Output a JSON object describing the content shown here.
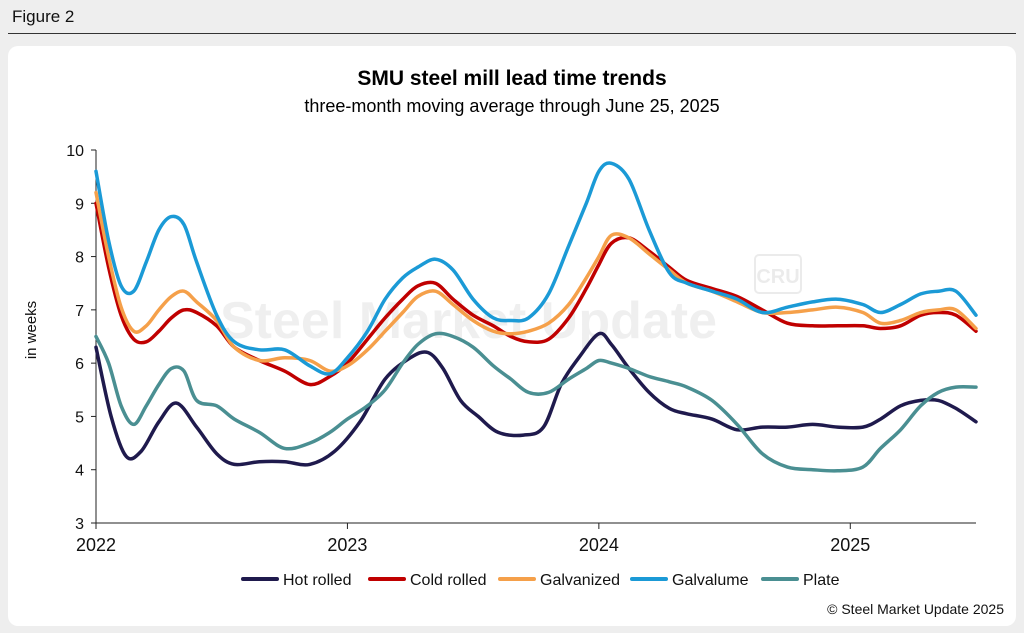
{
  "figure_label": "Figure 2",
  "credit": "© Steel Market Update 2025",
  "watermark": {
    "text": "Steel Market Update",
    "badge": "CRU"
  },
  "chart_data": {
    "type": "line",
    "title": "SMU steel mill lead time trends",
    "subtitle": "three-month moving average through June 25, 2025",
    "ylabel": "in weeks",
    "xlabel": "",
    "ylim": [
      3,
      10
    ],
    "xlim": [
      2022.0,
      2025.5
    ],
    "yticks": [
      3,
      4,
      5,
      6,
      7,
      8,
      9,
      10
    ],
    "xticks": [
      {
        "value": 2022,
        "label": "2022"
      },
      {
        "value": 2023,
        "label": "2023"
      },
      {
        "value": 2024,
        "label": "2024"
      },
      {
        "value": 2025,
        "label": "2025"
      }
    ],
    "grid": false,
    "legend_position": "bottom",
    "series": [
      {
        "name": "Hot rolled",
        "color": "#1f1a4d",
        "x": [
          2022.0,
          2022.06,
          2022.12,
          2022.18,
          2022.25,
          2022.32,
          2022.4,
          2022.48,
          2022.55,
          2022.65,
          2022.75,
          2022.85,
          2022.95,
          2023.05,
          2023.15,
          2023.25,
          2023.32,
          2023.38,
          2023.45,
          2023.52,
          2023.6,
          2023.7,
          2023.78,
          2023.85,
          2023.92,
          2024.0,
          2024.05,
          2024.12,
          2024.2,
          2024.28,
          2024.35,
          2024.45,
          2024.55,
          2024.65,
          2024.75,
          2024.85,
          2024.95,
          2025.05,
          2025.12,
          2025.2,
          2025.28,
          2025.35,
          2025.42,
          2025.5
        ],
        "y": [
          6.3,
          5.0,
          4.25,
          4.35,
          4.9,
          5.25,
          4.8,
          4.3,
          4.1,
          4.15,
          4.15,
          4.1,
          4.35,
          4.9,
          5.7,
          6.1,
          6.2,
          5.9,
          5.3,
          5.0,
          4.7,
          4.65,
          4.8,
          5.6,
          6.1,
          6.55,
          6.35,
          5.9,
          5.45,
          5.15,
          5.05,
          4.95,
          4.75,
          4.8,
          4.8,
          4.85,
          4.8,
          4.8,
          4.95,
          5.2,
          5.3,
          5.3,
          5.15,
          4.9
        ]
      },
      {
        "name": "Cold rolled",
        "color": "#c00000",
        "x": [
          2022.0,
          2022.05,
          2022.1,
          2022.15,
          2022.2,
          2022.25,
          2022.3,
          2022.35,
          2022.4,
          2022.48,
          2022.55,
          2022.65,
          2022.75,
          2022.85,
          2022.93,
          2023.0,
          2023.08,
          2023.15,
          2023.22,
          2023.28,
          2023.35,
          2023.42,
          2023.5,
          2023.58,
          2023.65,
          2023.72,
          2023.8,
          2023.88,
          2023.95,
          2024.0,
          2024.05,
          2024.12,
          2024.2,
          2024.28,
          2024.35,
          2024.45,
          2024.55,
          2024.65,
          2024.75,
          2024.85,
          2024.95,
          2025.05,
          2025.12,
          2025.2,
          2025.28,
          2025.35,
          2025.42,
          2025.5
        ],
        "y": [
          9.0,
          7.8,
          6.9,
          6.45,
          6.4,
          6.6,
          6.85,
          7.0,
          6.95,
          6.7,
          6.3,
          6.05,
          5.85,
          5.6,
          5.75,
          6.0,
          6.45,
          6.85,
          7.2,
          7.45,
          7.5,
          7.2,
          6.9,
          6.7,
          6.5,
          6.4,
          6.45,
          6.85,
          7.4,
          7.85,
          8.25,
          8.35,
          8.1,
          7.8,
          7.55,
          7.4,
          7.25,
          7.0,
          6.75,
          6.7,
          6.7,
          6.7,
          6.65,
          6.7,
          6.9,
          6.95,
          6.9,
          6.6
        ]
      },
      {
        "name": "Galvanized",
        "color": "#f5a04a",
        "x": [
          2022.0,
          2022.05,
          2022.1,
          2022.15,
          2022.2,
          2022.25,
          2022.3,
          2022.35,
          2022.4,
          2022.48,
          2022.55,
          2022.65,
          2022.75,
          2022.85,
          2022.93,
          2023.0,
          2023.08,
          2023.15,
          2023.22,
          2023.28,
          2023.35,
          2023.42,
          2023.5,
          2023.58,
          2023.65,
          2023.72,
          2023.8,
          2023.88,
          2023.95,
          2024.0,
          2024.05,
          2024.12,
          2024.2,
          2024.28,
          2024.35,
          2024.45,
          2024.55,
          2024.65,
          2024.75,
          2024.85,
          2024.95,
          2025.05,
          2025.12,
          2025.2,
          2025.28,
          2025.35,
          2025.42,
          2025.5
        ],
        "y": [
          9.2,
          8.0,
          7.05,
          6.6,
          6.7,
          7.0,
          7.25,
          7.35,
          7.15,
          6.8,
          6.3,
          6.05,
          6.1,
          6.05,
          5.85,
          5.95,
          6.25,
          6.6,
          6.95,
          7.25,
          7.35,
          7.1,
          6.8,
          6.6,
          6.55,
          6.6,
          6.75,
          7.1,
          7.6,
          8.0,
          8.4,
          8.35,
          8.05,
          7.75,
          7.5,
          7.35,
          7.15,
          6.95,
          6.95,
          7.0,
          7.05,
          6.95,
          6.75,
          6.8,
          6.95,
          7.0,
          7.0,
          6.65
        ]
      },
      {
        "name": "Galvalume",
        "color": "#1b9ad6",
        "x": [
          2022.0,
          2022.05,
          2022.1,
          2022.15,
          2022.2,
          2022.25,
          2022.3,
          2022.35,
          2022.4,
          2022.48,
          2022.55,
          2022.65,
          2022.75,
          2022.85,
          2022.93,
          2023.0,
          2023.08,
          2023.15,
          2023.22,
          2023.28,
          2023.35,
          2023.42,
          2023.5,
          2023.58,
          2023.65,
          2023.72,
          2023.8,
          2023.88,
          2023.95,
          2024.0,
          2024.05,
          2024.12,
          2024.2,
          2024.28,
          2024.35,
          2024.45,
          2024.55,
          2024.65,
          2024.75,
          2024.85,
          2024.95,
          2025.05,
          2025.12,
          2025.2,
          2025.28,
          2025.35,
          2025.42,
          2025.5
        ],
        "y": [
          9.6,
          8.3,
          7.45,
          7.35,
          7.9,
          8.5,
          8.75,
          8.6,
          7.9,
          6.9,
          6.4,
          6.25,
          6.25,
          5.95,
          5.8,
          6.1,
          6.6,
          7.2,
          7.6,
          7.8,
          7.95,
          7.75,
          7.2,
          6.85,
          6.8,
          6.85,
          7.3,
          8.2,
          9.0,
          9.6,
          9.75,
          9.45,
          8.5,
          7.7,
          7.5,
          7.35,
          7.2,
          6.95,
          7.05,
          7.15,
          7.2,
          7.1,
          6.95,
          7.1,
          7.3,
          7.35,
          7.35,
          6.9
        ]
      },
      {
        "name": "Plate",
        "color": "#4a8f92",
        "x": [
          2022.0,
          2022.05,
          2022.1,
          2022.15,
          2022.2,
          2022.25,
          2022.3,
          2022.35,
          2022.4,
          2022.48,
          2022.55,
          2022.65,
          2022.75,
          2022.85,
          2022.93,
          2023.0,
          2023.08,
          2023.15,
          2023.22,
          2023.28,
          2023.35,
          2023.42,
          2023.5,
          2023.58,
          2023.65,
          2023.72,
          2023.8,
          2023.88,
          2023.95,
          2024.0,
          2024.05,
          2024.12,
          2024.2,
          2024.28,
          2024.35,
          2024.45,
          2024.55,
          2024.65,
          2024.75,
          2024.85,
          2024.95,
          2025.05,
          2025.12,
          2025.2,
          2025.28,
          2025.35,
          2025.42,
          2025.5
        ],
        "y": [
          6.5,
          6.0,
          5.2,
          4.85,
          5.2,
          5.6,
          5.9,
          5.85,
          5.3,
          5.2,
          4.95,
          4.7,
          4.4,
          4.5,
          4.7,
          4.95,
          5.2,
          5.5,
          6.0,
          6.35,
          6.55,
          6.5,
          6.3,
          5.95,
          5.7,
          5.45,
          5.45,
          5.7,
          5.9,
          6.05,
          6.0,
          5.9,
          5.75,
          5.65,
          5.55,
          5.3,
          4.85,
          4.3,
          4.05,
          4.0,
          3.98,
          4.05,
          4.4,
          4.75,
          5.2,
          5.45,
          5.55,
          5.55
        ]
      }
    ]
  }
}
